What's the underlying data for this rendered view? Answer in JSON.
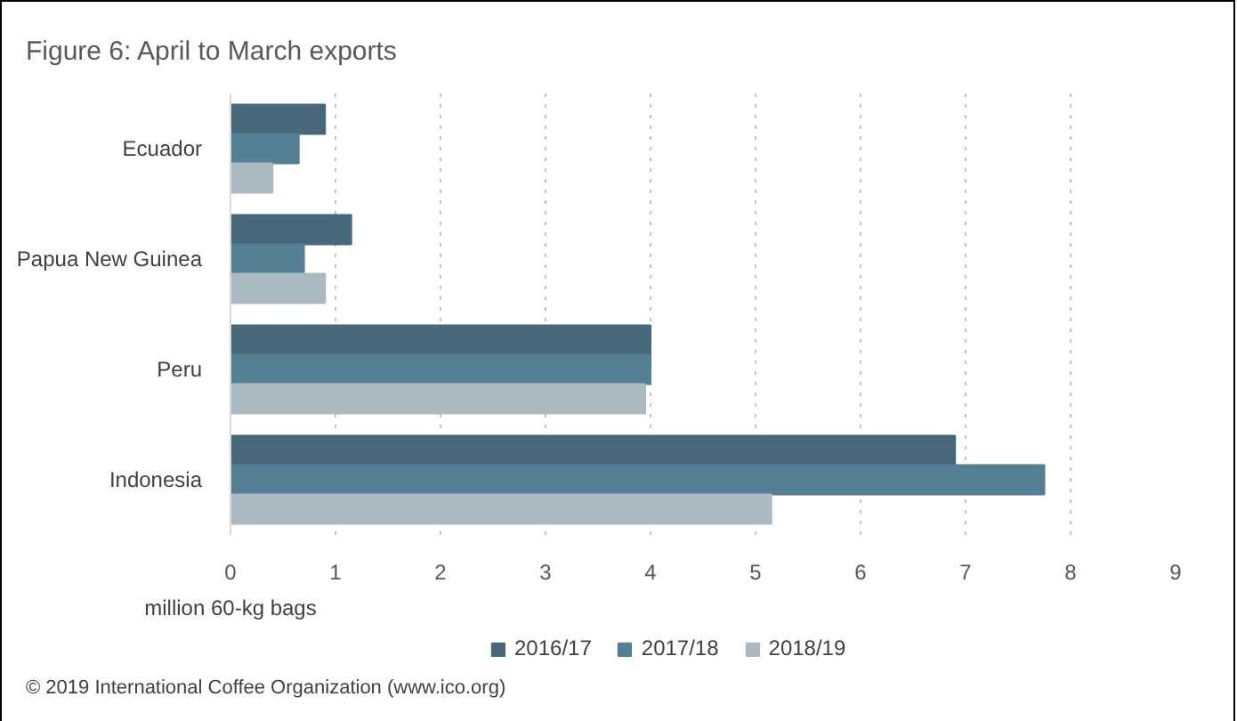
{
  "chart_data": {
    "type": "bar",
    "orientation": "horizontal",
    "title": "Figure 6: April to March exports",
    "xlabel": "million 60-kg bags",
    "categories": [
      "Ecuador",
      "Papua New Guinea",
      "Peru",
      "Indonesia"
    ],
    "series": [
      {
        "name": "2016/17",
        "color": "#46687a",
        "values": [
          0.9,
          1.15,
          4.0,
          6.9
        ]
      },
      {
        "name": "2017/18",
        "color": "#557f94",
        "values": [
          0.65,
          0.7,
          4.0,
          7.75
        ]
      },
      {
        "name": "2018/19",
        "color": "#abbac2",
        "values": [
          0.4,
          0.9,
          3.95,
          5.15
        ]
      }
    ],
    "xlim": [
      0,
      9
    ],
    "xticks": [
      0,
      1,
      2,
      3,
      4,
      5,
      6,
      7,
      8,
      9
    ],
    "grid": "x",
    "legend": "bottom",
    "annotations": [
      "© 2019 International Coffee Organization (www.ico.org)"
    ]
  }
}
